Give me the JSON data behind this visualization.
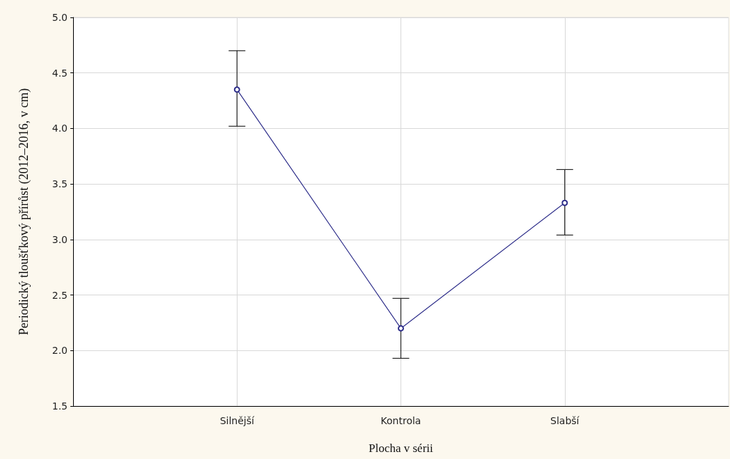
{
  "chart_data": {
    "type": "line",
    "xlabel": "Plocha v sérii",
    "ylabel": "Periodický tloušťkový přírůst (2012–2016, v cm)",
    "categories": [
      "Silnější",
      "Kontrola",
      "Slabší"
    ],
    "values": [
      4.35,
      2.2,
      3.33
    ],
    "errors": [
      [
        4.02,
        4.7
      ],
      [
        1.93,
        2.47
      ],
      [
        3.04,
        3.63
      ]
    ],
    "color": "#2e2e8a",
    "marker": "circle",
    "line_style": "solid",
    "grid": true,
    "ylim": [
      1.5,
      5.0
    ],
    "yticks": [
      {
        "value": 1.5,
        "label": "1.5"
      },
      {
        "value": 2.0,
        "label": "2.0"
      },
      {
        "value": 2.5,
        "label": "2.5"
      },
      {
        "value": 3.0,
        "label": "3.0"
      },
      {
        "value": 3.5,
        "label": "3.5"
      },
      {
        "value": 4.0,
        "label": "4.0"
      },
      {
        "value": 4.5,
        "label": "4.5"
      },
      {
        "value": 5.0,
        "label": "5.0"
      }
    ]
  }
}
